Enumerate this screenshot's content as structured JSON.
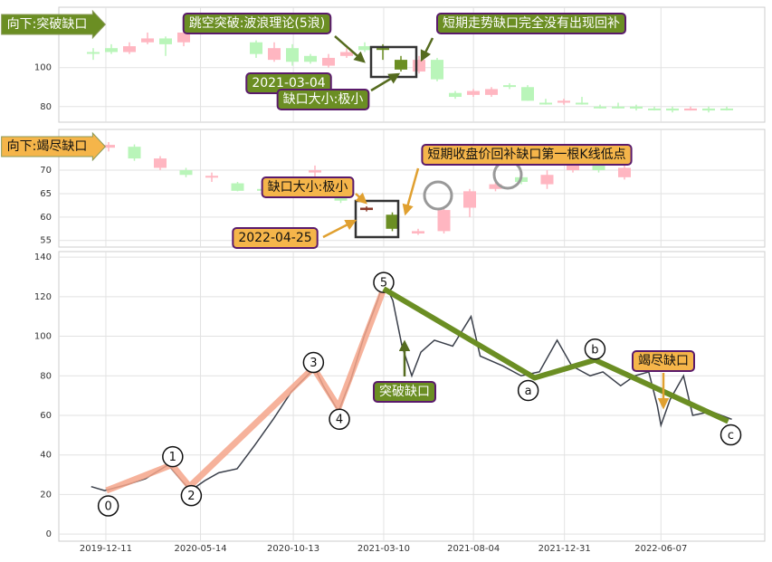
{
  "chart_data": [
    {
      "type": "candlestick",
      "label": "向下:突破缺口",
      "ylim": [
        72,
        131
      ],
      "yticks": [
        80,
        100
      ],
      "grid": true,
      "up_color": "#ffb6c1",
      "down_color": "#b9f5b9",
      "highlight": [
        16,
        17
      ],
      "highlight_up_color": "#8b3a2a",
      "highlight_down_color": "#6b8e23",
      "open": [
        108,
        110,
        108,
        113,
        115,
        113,
        118,
        120,
        124,
        113,
        104,
        110,
        106,
        101,
        106,
        111,
        110,
        104,
        98,
        104,
        87,
        86,
        86,
        91,
        90,
        82,
        82,
        82,
        80,
        80,
        80,
        79,
        79,
        78,
        79,
        79
      ],
      "close": [
        108,
        108,
        111,
        115,
        112,
        118,
        119,
        122,
        126,
        107,
        110,
        103,
        103,
        105,
        108,
        109,
        110,
        99,
        104,
        94,
        85,
        88,
        89,
        91,
        83,
        82,
        83,
        82,
        80,
        80,
        79,
        79,
        78,
        79,
        78,
        79
      ],
      "high": [
        110,
        112,
        113,
        118,
        116,
        119,
        122,
        124,
        127,
        114,
        113,
        112,
        107,
        107,
        110,
        113,
        112,
        106,
        106,
        105,
        88,
        89,
        90,
        92,
        91,
        84,
        84,
        85,
        81,
        82,
        81,
        80,
        80,
        80,
        80,
        80
      ],
      "low": [
        104,
        107,
        107,
        112,
        106,
        111,
        117,
        118,
        122,
        105,
        103,
        101,
        102,
        100,
        105,
        108,
        104,
        98,
        97,
        93,
        84,
        85,
        85,
        89,
        83,
        81,
        81,
        81,
        79,
        79,
        78,
        78,
        77,
        78,
        77,
        78
      ],
      "annotations": [
        {
          "text": "跳空突破:波浪理论(5浪)",
          "style": "olive"
        },
        {
          "text": "短期走势缺口完全没有出现回补",
          "style": "olive"
        },
        {
          "text": "2021-03-04",
          "style": "olive"
        },
        {
          "text": "缺口大小:极小",
          "style": "olive"
        }
      ]
    },
    {
      "type": "candlestick",
      "label": "向下:竭尽缺口",
      "ylim": [
        53.6,
        78.7
      ],
      "yticks": [
        55,
        60,
        65,
        70
      ],
      "grid": true,
      "up_color": "#ffb6c1",
      "down_color": "#b9f5b9",
      "highlight": [
        10,
        11
      ],
      "highlight_up_color": "#8b3a2a",
      "highlight_down_color": "#6b8e23",
      "open": [
        74.8,
        75,
        70.5,
        70,
        68.5,
        67.2,
        66,
        67,
        69.5,
        64.5,
        61.5,
        60.5,
        56.5,
        57,
        62,
        66,
        68.5,
        67,
        70,
        71,
        68.5
      ],
      "close": [
        75.4,
        72.5,
        72.5,
        69,
        68.8,
        65.6,
        65.8,
        66.5,
        70,
        63.5,
        62,
        57.5,
        57,
        61.5,
        65.5,
        67,
        67.5,
        69,
        71.5,
        70,
        70.5
      ],
      "high": [
        76,
        75.5,
        73,
        70.5,
        69.5,
        67.5,
        67,
        67.5,
        71,
        65,
        62.3,
        61,
        57.5,
        62,
        66,
        68,
        69,
        70,
        72,
        71.5,
        71
      ],
      "low": [
        74,
        72,
        70,
        68.5,
        67.5,
        65.5,
        65.5,
        66,
        68,
        63,
        61.2,
        57,
        56.2,
        56.5,
        60,
        65.5,
        67,
        66,
        69.5,
        69.5,
        68
      ],
      "annotations": [
        {
          "text": "短期收盘价回补缺口第一根K线低点",
          "style": "orange"
        },
        {
          "text": "缺口大小:极小",
          "style": "orange"
        },
        {
          "text": "2022-04-25",
          "style": "orange"
        }
      ]
    },
    {
      "type": "line",
      "ylim": [
        -3.6,
        142.8
      ],
      "yticks": [
        0,
        20,
        40,
        60,
        80,
        100,
        120,
        140
      ],
      "grid": true,
      "xlim": [
        "2019-09-25",
        "2022-11-24"
      ],
      "xticks": [
        "2019-12-11",
        "2020-05-14",
        "2020-10-13",
        "2021-03-10",
        "2021-08-04",
        "2021-12-31",
        "2022-06-07"
      ],
      "series": [
        {
          "color": "#3a3f4a",
          "x": [
            "2019-11-17",
            "2019-12-09",
            "2020-01-15",
            "2020-02-14",
            "2020-03-22",
            "2020-04-13",
            "2020-04-28",
            "2020-05-21",
            "2020-06-13",
            "2020-07-13",
            "2020-08-11",
            "2020-09-10",
            "2020-10-10",
            "2020-11-17",
            "2020-12-01",
            "2020-12-26",
            "2021-01-15",
            "2021-02-06",
            "2021-02-28",
            "2021-03-10",
            "2021-03-25",
            "2021-04-09",
            "2021-04-25",
            "2021-05-10",
            "2021-06-01",
            "2021-07-01",
            "2021-07-31",
            "2021-08-15",
            "2021-09-21",
            "2021-10-21",
            "2021-11-20",
            "2021-12-19",
            "2022-01-12",
            "2022-02-11",
            "2022-03-04",
            "2022-04-02",
            "2022-04-25",
            "2022-05-18",
            "2022-06-01",
            "2022-06-07",
            "2022-06-22",
            "2022-07-14",
            "2022-07-29",
            "2022-08-28",
            "2022-10-01"
          ],
          "values": [
            24,
            22,
            25,
            28,
            35,
            27,
            22,
            27,
            31,
            33,
            45,
            58,
            72,
            84,
            75,
            62,
            78,
            100,
            118,
            128,
            118,
            95,
            80,
            92,
            98,
            95,
            110,
            90,
            85,
            80,
            82,
            98,
            85,
            80,
            82,
            75,
            80,
            82,
            65,
            55,
            68,
            80,
            60,
            62,
            58
          ]
        }
      ],
      "waves": [
        {
          "color": "#f4a58a",
          "labels": [
            "0",
            "1",
            "2",
            "3",
            "4",
            "5"
          ],
          "x": [
            "2019-12-12",
            "2020-03-28",
            "2020-04-26",
            "2020-11-15",
            "2020-12-26",
            "2021-03-10"
          ],
          "values": [
            22,
            35,
            24,
            84,
            64,
            124
          ]
        },
        {
          "color": "#6b8e23",
          "labels": [
            "a",
            "b",
            "c"
          ],
          "x": [
            "2021-03-10",
            "2021-11-12",
            "2022-02-19",
            "2022-09-25"
          ],
          "values": [
            124,
            79,
            88,
            57
          ],
          "label_from": 1
        }
      ],
      "annotations": [
        {
          "text": "突破缺口",
          "style": "olive"
        },
        {
          "text": "竭尽缺口",
          "style": "orange"
        }
      ]
    }
  ]
}
